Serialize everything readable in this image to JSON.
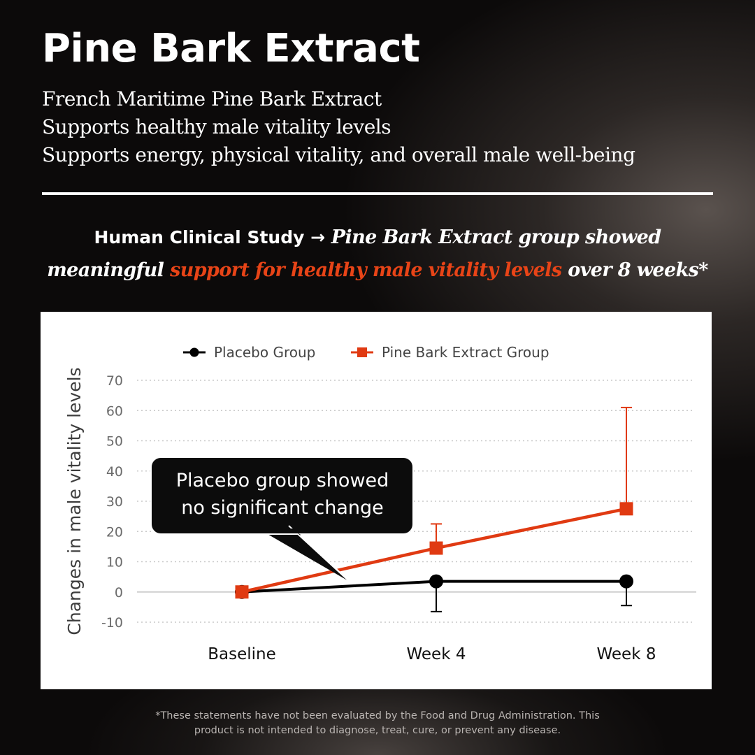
{
  "header": {
    "title": "Pine Bark Extract",
    "subtitle_lines": [
      "French Maritime Pine Bark Extract",
      "Supports healthy male vitality levels",
      "Supports energy, physical vitality, and overall male well-being"
    ]
  },
  "headline": {
    "lead": "Human Clinical Study → ",
    "italic_1": "Pine Bark Extract group showed",
    "italic_2": "meaningful ",
    "highlight": "support for healthy male vitality levels",
    "italic_3": " over 8 weeks*"
  },
  "callout": {
    "line1": "Placebo group showed",
    "line2": "no significant change"
  },
  "footnote": {
    "line1": "*These statements have not been evaluated by the Food and Drug Administration. This",
    "line2": "product is not intended to diagnose, treat, cure, or prevent any disease."
  },
  "colors": {
    "accent": "#e03a12",
    "placebo": "#000000",
    "grid": "#c9c9c9"
  },
  "chart_data": {
    "type": "line",
    "categories": [
      "Baseline",
      "Week 4",
      "Week 8"
    ],
    "ylabel": "Changes in male vitality levels",
    "xlabel": "",
    "ylim": [
      -10,
      70
    ],
    "yticks": [
      70,
      60,
      50,
      40,
      30,
      20,
      10,
      0,
      -10
    ],
    "grid": true,
    "legend_position": "top",
    "series": [
      {
        "name": "Placebo Group",
        "marker": "circle",
        "color": "#000000",
        "values": [
          0,
          3.5,
          3.5
        ],
        "error": [
          null,
          10,
          8
        ]
      },
      {
        "name": "Pine Bark Extract Group",
        "marker": "square",
        "color": "#e03a12",
        "values": [
          0,
          14.5,
          27.5
        ],
        "error": [
          null,
          8,
          33.5
        ]
      }
    ]
  }
}
